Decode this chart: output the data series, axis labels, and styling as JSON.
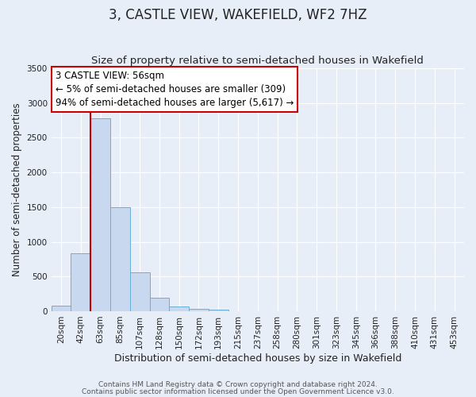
{
  "title": "3, CASTLE VIEW, WAKEFIELD, WF2 7HZ",
  "subtitle": "Size of property relative to semi-detached houses in Wakefield",
  "xlabel": "Distribution of semi-detached houses by size in Wakefield",
  "ylabel": "Number of semi-detached properties",
  "bar_labels": [
    "20sqm",
    "42sqm",
    "63sqm",
    "85sqm",
    "107sqm",
    "128sqm",
    "150sqm",
    "172sqm",
    "193sqm",
    "215sqm",
    "237sqm",
    "258sqm",
    "280sqm",
    "301sqm",
    "323sqm",
    "345sqm",
    "366sqm",
    "388sqm",
    "410sqm",
    "431sqm",
    "453sqm"
  ],
  "bar_values": [
    75,
    830,
    2780,
    1500,
    555,
    190,
    65,
    30,
    20,
    0,
    0,
    0,
    0,
    0,
    0,
    0,
    0,
    0,
    0,
    0,
    0
  ],
  "bar_color": "#c8d8ee",
  "bar_edge_color": "#6baed6",
  "ylim": [
    0,
    3500
  ],
  "yticks": [
    0,
    500,
    1000,
    1500,
    2000,
    2500,
    3000,
    3500
  ],
  "vline_color": "#cc0000",
  "annotation_title": "3 CASTLE VIEW: 56sqm",
  "annotation_line1": "← 5% of semi-detached houses are smaller (309)",
  "annotation_line2": "94% of semi-detached houses are larger (5,617) →",
  "annotation_box_color": "#cc0000",
  "footnote1": "Contains HM Land Registry data © Crown copyright and database right 2024.",
  "footnote2": "Contains public sector information licensed under the Open Government Licence v3.0.",
  "bg_color": "#e8eef8",
  "plot_bg_color": "#e8eef8",
  "grid_color": "#ffffff",
  "title_fontsize": 12,
  "subtitle_fontsize": 9.5,
  "xlabel_fontsize": 9,
  "ylabel_fontsize": 8.5,
  "tick_fontsize": 7.5,
  "annotation_fontsize": 8.5,
  "footnote_fontsize": 6.5
}
